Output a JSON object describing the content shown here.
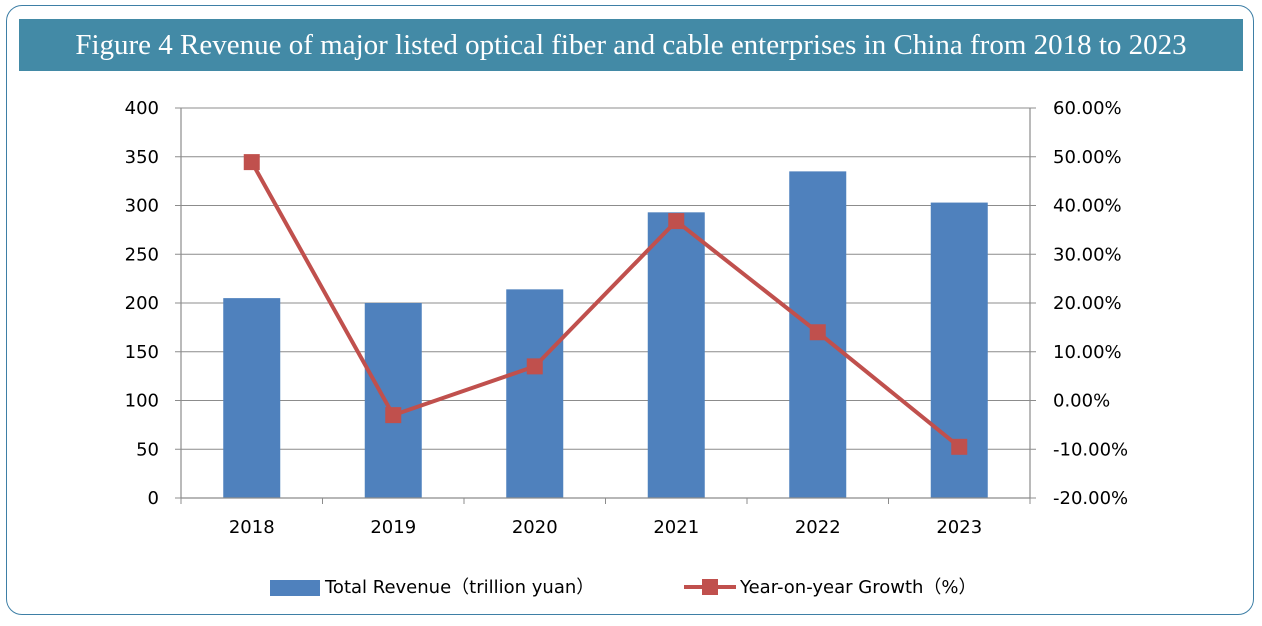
{
  "title": "Figure 4 Revenue of major listed optical fiber and cable enterprises in China from 2018 to 2023",
  "chart_data": {
    "type": "bar",
    "categories": [
      "2018",
      "2019",
      "2020",
      "2021",
      "2022",
      "2023"
    ],
    "series": [
      {
        "name": "Total Revenue（trillion  yuan）",
        "type": "bar",
        "axis": "left",
        "color": "#4f81bd",
        "values": [
          205,
          200,
          214,
          293,
          335,
          303
        ]
      },
      {
        "name": "Year-on-year  Growth（%）",
        "type": "line",
        "axis": "right",
        "color": "#c0504d",
        "values": [
          48.9,
          -3.0,
          7.0,
          36.8,
          14.0,
          -9.5
        ]
      }
    ],
    "y_left": {
      "ylim": [
        0,
        400
      ],
      "ticks": [
        0,
        50,
        100,
        150,
        200,
        250,
        300,
        350,
        400
      ]
    },
    "y_right": {
      "ylim": [
        -20,
        60
      ],
      "ticks": [
        "-20.00%",
        "-10.00%",
        "0.00%",
        "10.00%",
        "20.00%",
        "30.00%",
        "40.00%",
        "50.00%",
        "60.00%"
      ]
    },
    "grid": true,
    "legend": "bottom"
  }
}
